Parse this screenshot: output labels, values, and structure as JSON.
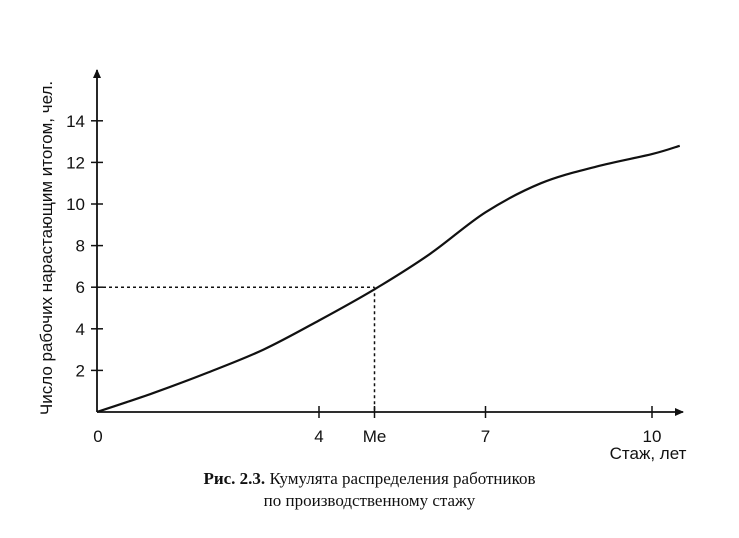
{
  "chart_data": {
    "type": "line",
    "xlabel": "Стаж, лет",
    "ylabel": "Число рабочих нарастающим итогом, чел.",
    "x_ticks": [
      {
        "value": 0,
        "label": "0"
      },
      {
        "value": 4,
        "label": "4"
      },
      {
        "value": 5.0,
        "label": "Me"
      },
      {
        "value": 7,
        "label": "7"
      },
      {
        "value": 10,
        "label": "10"
      }
    ],
    "y_ticks": [
      {
        "value": 2,
        "label": "2"
      },
      {
        "value": 4,
        "label": "4"
      },
      {
        "value": 6,
        "label": "6"
      },
      {
        "value": 8,
        "label": "8"
      },
      {
        "value": 10,
        "label": "10"
      },
      {
        "value": 12,
        "label": "12"
      },
      {
        "value": 14,
        "label": "14"
      }
    ],
    "series": [
      {
        "x": [
          0,
          1,
          2,
          3,
          4,
          5,
          6,
          7,
          8,
          9,
          10,
          10.5
        ],
        "y": [
          0,
          0.9,
          1.9,
          3.0,
          4.4,
          5.9,
          7.6,
          9.6,
          11.0,
          11.8,
          12.4,
          12.8
        ]
      }
    ],
    "median": {
      "x": 5.0,
      "y": 6
    },
    "xlim": [
      0,
      10.5
    ],
    "ylim": [
      0,
      14
    ],
    "grid": false
  },
  "caption": {
    "label": "Рис. 2.3.",
    "text": " Кумулята распределения работников",
    "line2": "по производственному стажу"
  }
}
